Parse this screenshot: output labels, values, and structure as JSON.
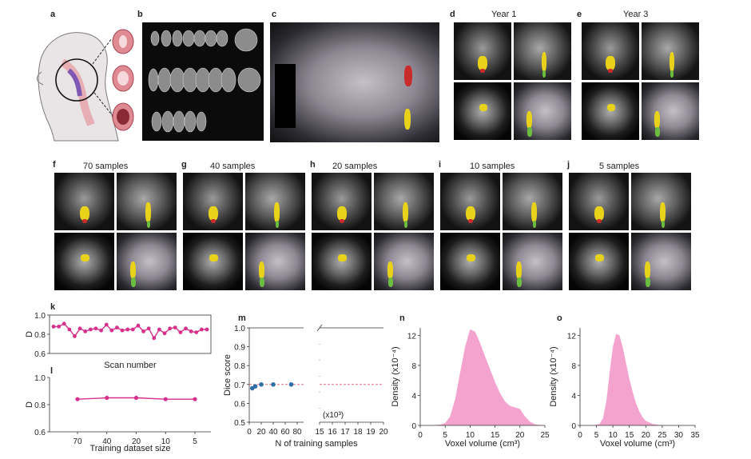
{
  "panel_labels": {
    "a": "a",
    "b": "b",
    "c": "c",
    "d": "d",
    "e": "e",
    "f": "f",
    "g": "g",
    "h": "h",
    "i": "i",
    "j": "j",
    "k": "k",
    "l": "l",
    "m": "m",
    "n": "n",
    "o": "o"
  },
  "panel_d_title": "Year 1",
  "panel_e_title": "Year 3",
  "sample_titles": [
    "70 samples",
    "40 samples",
    "20 samples",
    "10 samples",
    "5 samples"
  ],
  "chart_data": [
    {
      "panel": "k",
      "type": "line",
      "xlabel": "Scan number",
      "ylabel": "D",
      "ylim": [
        0.6,
        1.0
      ],
      "yticks": [
        "0.6",
        "0.8",
        "1.0"
      ],
      "color": "#d62f8c",
      "values": [
        0.88,
        0.88,
        0.91,
        0.85,
        0.78,
        0.86,
        0.83,
        0.85,
        0.86,
        0.84,
        0.9,
        0.84,
        0.87,
        0.84,
        0.85,
        0.85,
        0.89,
        0.83,
        0.86,
        0.76,
        0.85,
        0.81,
        0.86,
        0.87,
        0.82,
        0.86,
        0.83,
        0.82,
        0.85,
        0.85
      ]
    },
    {
      "panel": "l",
      "type": "line",
      "xlabel": "Training dataset size",
      "ylabel": "D",
      "categories": [
        "70",
        "40",
        "20",
        "10",
        "5"
      ],
      "values": [
        0.84,
        0.85,
        0.85,
        0.84,
        0.84
      ],
      "ylim": [
        0.6,
        1.0
      ],
      "yticks": [
        "0.6",
        "0.8",
        "1.0"
      ],
      "color": "#d62f8c"
    },
    {
      "panel": "m",
      "type": "scatter",
      "xlabel": "N of training samples",
      "ylabel": "Dice score",
      "x": [
        5,
        10,
        20,
        40,
        70
      ],
      "y": [
        0.68,
        0.69,
        0.7,
        0.7,
        0.7
      ],
      "ylim": [
        0.5,
        1.0
      ],
      "yticks": [
        "0.5",
        "0.6",
        "0.7",
        "0.8",
        "0.9",
        "1.0"
      ],
      "xticks_left": [
        "0",
        "20",
        "40",
        "60",
        "80"
      ],
      "xticks_right": [
        "15",
        "16",
        "17",
        "18",
        "19",
        "20"
      ],
      "right_unit": "(x10³)",
      "reference_y": 0.7,
      "color": "#2e6fa8",
      "ref_color": "#d9536b"
    },
    {
      "panel": "n",
      "type": "area",
      "xlabel": "Voxel volume (cm³)",
      "ylabel": "Density (x10⁻⁴)",
      "xlim": [
        0,
        25
      ],
      "ylim": [
        0,
        13
      ],
      "xticks": [
        "0",
        "5",
        "10",
        "15",
        "20",
        "25"
      ],
      "yticks": [
        "0",
        "4",
        "8",
        "12"
      ],
      "x": [
        0,
        2,
        4,
        5,
        6,
        7,
        8,
        9,
        10,
        11,
        12,
        13,
        14,
        15,
        16,
        17,
        18,
        19,
        20,
        21,
        22,
        23,
        24,
        25
      ],
      "y": [
        0,
        0,
        0.1,
        0.3,
        1.2,
        3.5,
        7.0,
        10.5,
        12.8,
        12.5,
        11.0,
        9.2,
        7.5,
        5.8,
        4.3,
        3.2,
        2.6,
        2.4,
        2.2,
        1.2,
        0.5,
        0.15,
        0.05,
        0
      ],
      "color": "#f4a3cf"
    },
    {
      "panel": "o",
      "type": "area",
      "xlabel": "Voxel volume (cm³)",
      "ylabel": "Density (x10⁻⁴)",
      "xlim": [
        0,
        35
      ],
      "ylim": [
        0,
        13
      ],
      "xticks": [
        "0",
        "5",
        "10",
        "15",
        "20",
        "25",
        "30",
        "35"
      ],
      "yticks": [
        "0",
        "4",
        "8",
        "12"
      ],
      "x": [
        0,
        4,
        6,
        7,
        8,
        9,
        10,
        11,
        12,
        13,
        14,
        15,
        16,
        17,
        18,
        19,
        20,
        22,
        24,
        26,
        28,
        30,
        35
      ],
      "y": [
        0,
        0,
        0.2,
        1.0,
        3.2,
        7.0,
        10.5,
        12.2,
        12.0,
        10.4,
        8.3,
        6.2,
        4.5,
        3.0,
        1.9,
        1.1,
        0.6,
        0.2,
        0.05,
        0,
        0,
        0,
        0
      ],
      "color": "#f4a3cf"
    }
  ]
}
